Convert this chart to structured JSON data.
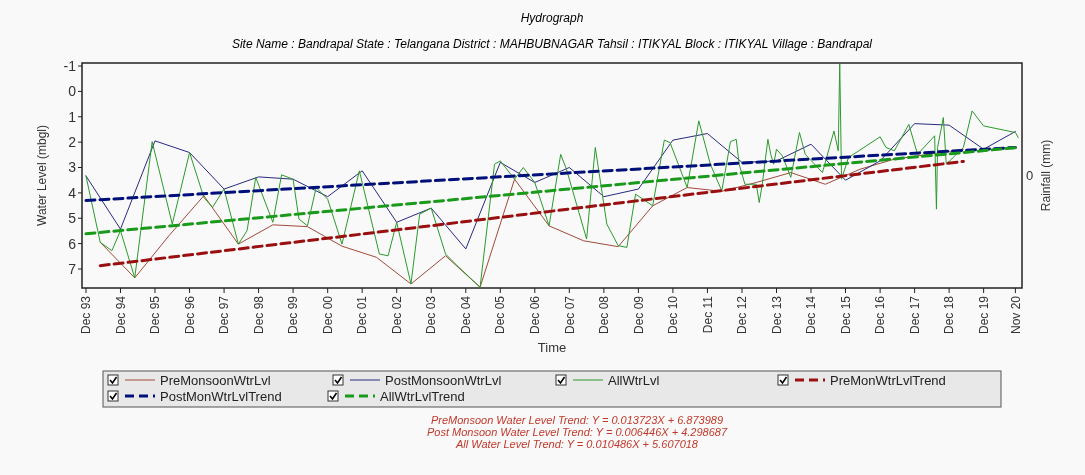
{
  "chart_data": {
    "type": "line",
    "title": "Hydrograph",
    "subtitle": "Site Name : Bandrapal  State : Telangana District : MAHBUBNAGAR  Tahsil : ITIKYAL  Block : ITIKYAL Village : Bandrapal",
    "xlabel": "Time",
    "ylabel": "Water Level (mbgl)",
    "y2label": "Rainfall (mm)",
    "xlim": [
      "1993-10-20",
      "2021-01-10"
    ],
    "xticks": [
      {
        "value": "1993-12-01",
        "label": "Dec 93"
      },
      {
        "value": "1994-12-01",
        "label": "Dec 94"
      },
      {
        "value": "1995-12-01",
        "label": "Dec 95"
      },
      {
        "value": "1996-12-01",
        "label": "Dec 96"
      },
      {
        "value": "1997-12-01",
        "label": "Dec 97"
      },
      {
        "value": "1998-12-01",
        "label": "Dec 98"
      },
      {
        "value": "1999-12-01",
        "label": "Dec 99"
      },
      {
        "value": "2000-12-01",
        "label": "Dec 00"
      },
      {
        "value": "2001-12-01",
        "label": "Dec 01"
      },
      {
        "value": "2002-12-01",
        "label": "Dec 02"
      },
      {
        "value": "2003-12-01",
        "label": "Dec 03"
      },
      {
        "value": "2004-12-01",
        "label": "Dec 04"
      },
      {
        "value": "2005-12-01",
        "label": "Dec 05"
      },
      {
        "value": "2006-12-01",
        "label": "Dec 06"
      },
      {
        "value": "2007-12-01",
        "label": "Dec 07"
      },
      {
        "value": "2008-12-01",
        "label": "Dec 08"
      },
      {
        "value": "2009-12-01",
        "label": "Dec 09"
      },
      {
        "value": "2010-12-01",
        "label": "Dec 10"
      },
      {
        "value": "2011-12-01",
        "label": "Dec 11"
      },
      {
        "value": "2012-12-01",
        "label": "Dec 12"
      },
      {
        "value": "2013-12-01",
        "label": "Dec 13"
      },
      {
        "value": "2014-12-01",
        "label": "Dec 14"
      },
      {
        "value": "2015-12-01",
        "label": "Dec 15"
      },
      {
        "value": "2016-12-01",
        "label": "Dec 16"
      },
      {
        "value": "2017-12-01",
        "label": "Dec 17"
      },
      {
        "value": "2018-12-01",
        "label": "Dec 18"
      },
      {
        "value": "2019-12-01",
        "label": "Dec 19"
      },
      {
        "value": "2020-11-01",
        "label": "Nov 20"
      }
    ],
    "ylim": [
      7.75,
      -1.12
    ],
    "yticks": [
      -1,
      0,
      1,
      2,
      3,
      4,
      5,
      6,
      7
    ],
    "grid": false,
    "legend": "bottom",
    "marker": "none",
    "series": [
      {
        "name": "PreMonsoonWtrLvl",
        "color": "#a04a3a",
        "line_style": "solid",
        "x": [
          "1994-05",
          "1995-05",
          "1996-05",
          "1997-05",
          "1998-05",
          "1999-05",
          "2000-05",
          "2001-05",
          "2002-05",
          "2003-05",
          "2004-05",
          "2005-05",
          "2006-05",
          "2007-05",
          "2008-05",
          "2009-05",
          "2010-05",
          "2011-05",
          "2012-05",
          "2013-05",
          "2014-05",
          "2015-05",
          "2016-05",
          "2017-05",
          "2018-05",
          "2019-05"
        ],
        "values": [
          5.95,
          7.35,
          5.67,
          4.11,
          6.02,
          5.26,
          5.33,
          6.1,
          6.54,
          7.59,
          6.48,
          7.72,
          3.46,
          5.3,
          5.89,
          6.12,
          4.51,
          3.79,
          3.94,
          3.59,
          3.2,
          3.66,
          3.07,
          2.67,
          2.48,
          2.28
        ]
      },
      {
        "name": "PostMonsoonWtrLvl",
        "color": "#2a2a80",
        "line_style": "solid",
        "x": [
          "1993-12",
          "1994-12",
          "1995-12",
          "1996-12",
          "1997-12",
          "1998-12",
          "1999-12",
          "2000-12",
          "2001-12",
          "2002-12",
          "2003-12",
          "2004-12",
          "2005-12",
          "2006-12",
          "2007-12",
          "2008-12",
          "2009-12",
          "2010-12",
          "2011-12",
          "2012-12",
          "2013-12",
          "2014-12",
          "2015-12",
          "2016-12",
          "2017-12",
          "2018-12",
          "2019-12",
          "2020-11"
        ],
        "values": [
          3.33,
          5.43,
          1.95,
          2.41,
          3.85,
          3.37,
          3.46,
          4.15,
          3.13,
          5.16,
          4.6,
          6.21,
          2.8,
          3.59,
          3.0,
          4.15,
          3.85,
          1.92,
          1.66,
          2.8,
          2.74,
          2.08,
          3.5,
          2.74,
          1.27,
          1.33,
          2.28,
          1.58
        ]
      },
      {
        "name": "AllWtrLvl",
        "color": "#2c9a2c",
        "line_style": "solid",
        "x": [
          "1993-12",
          "1994-05",
          "1994-09",
          "1994-12",
          "1995-05",
          "1995-11",
          "1996-06",
          "1996-12",
          "1997-05",
          "1997-08",
          "1997-12",
          "1998-05",
          "1998-08",
          "1998-11",
          "1999-05",
          "1999-08",
          "1999-12",
          "2000-02",
          "2000-05",
          "2000-08",
          "2000-12",
          "2001-05",
          "2001-11",
          "2002-06",
          "2002-09",
          "2002-12",
          "2003-05",
          "2003-08",
          "2003-12",
          "2004-05",
          "2004-09",
          "2005-05",
          "2005-10",
          "2005-12",
          "2006-05",
          "2006-08",
          "2006-12",
          "2007-05",
          "2007-09",
          "2007-11",
          "2008-06",
          "2008-09",
          "2009-01",
          "2009-05",
          "2009-08",
          "2009-11",
          "2010-05",
          "2010-09",
          "2010-11",
          "2011-05",
          "2011-09",
          "2012-01",
          "2012-05",
          "2012-08",
          "2012-10",
          "2012-11",
          "2013-01",
          "2013-05",
          "2013-06",
          "2013-07",
          "2013-09",
          "2013-10",
          "2013-11",
          "2013-12",
          "2014-02",
          "2014-05",
          "2014-08",
          "2014-10",
          "2015-04",
          "2015-08",
          "2015-09-15",
          "2015-10-01",
          "2015-10-20",
          "2016-01",
          "2016-12",
          "2017-02",
          "2017-05",
          "2017-10",
          "2018-01",
          "2018-07-01",
          "2018-07-20",
          "2018-08",
          "2018-10",
          "2018-11",
          "2019-05",
          "2019-08",
          "2019-12",
          "2020-11",
          "2020-12"
        ],
        "values": [
          3.33,
          5.95,
          6.28,
          5.49,
          7.35,
          1.98,
          5.23,
          2.41,
          4.18,
          4.57,
          3.85,
          6.02,
          5.49,
          3.39,
          5.16,
          3.29,
          3.46,
          5.03,
          5.3,
          3.79,
          4.25,
          6.02,
          3.13,
          6.41,
          6.48,
          5.16,
          7.59,
          4.84,
          4.6,
          6.41,
          6.87,
          7.72,
          2.87,
          2.74,
          3.46,
          3.0,
          3.59,
          5.3,
          2.48,
          3.07,
          5.82,
          2.21,
          5.23,
          6.08,
          6.15,
          4.05,
          4.51,
          1.92,
          2.02,
          3.79,
          1.16,
          2.87,
          3.92,
          1.98,
          1.89,
          2.87,
          3.66,
          3.66,
          4.38,
          3.72,
          1.89,
          2.48,
          2.87,
          2.28,
          2.54,
          3.39,
          1.62,
          2.48,
          3.2,
          1.56,
          2.34,
          -1.1,
          3.46,
          2.61,
          1.79,
          2.21,
          2.34,
          1.3,
          2.48,
          1.75,
          4.64,
          2.21,
          1.03,
          2.87,
          2.21,
          0.77,
          1.36,
          1.62,
          1.82
        ]
      },
      {
        "name": "PreMonWtrLvlTrend",
        "color": "#9a1010",
        "line_style": "dashed",
        "x": [
          "1994-05",
          "2019-05"
        ],
        "values": [
          6.87,
          2.76
        ]
      },
      {
        "name": "PostMonWtrLvlTrend",
        "color": "#00107a",
        "line_style": "dashed",
        "x": [
          "1993-12",
          "2020-11"
        ],
        "values": [
          4.3,
          2.21
        ]
      },
      {
        "name": "AllWtrLvlTrend",
        "color": "#1a9a1a",
        "line_style": "dashed",
        "x": [
          "1993-12",
          "2020-11"
        ],
        "values": [
          5.61,
          2.22
        ]
      }
    ],
    "annotations": [
      "0",
      "PreMonsoon Water Level Trend: Y = 0.013723X + 6.873989",
      "Post Monsoon Water Level Trend: Y = 0.006446X + 4.298687",
      "All Water Level Trend: Y = 0.010486X + 5.607018"
    ]
  }
}
